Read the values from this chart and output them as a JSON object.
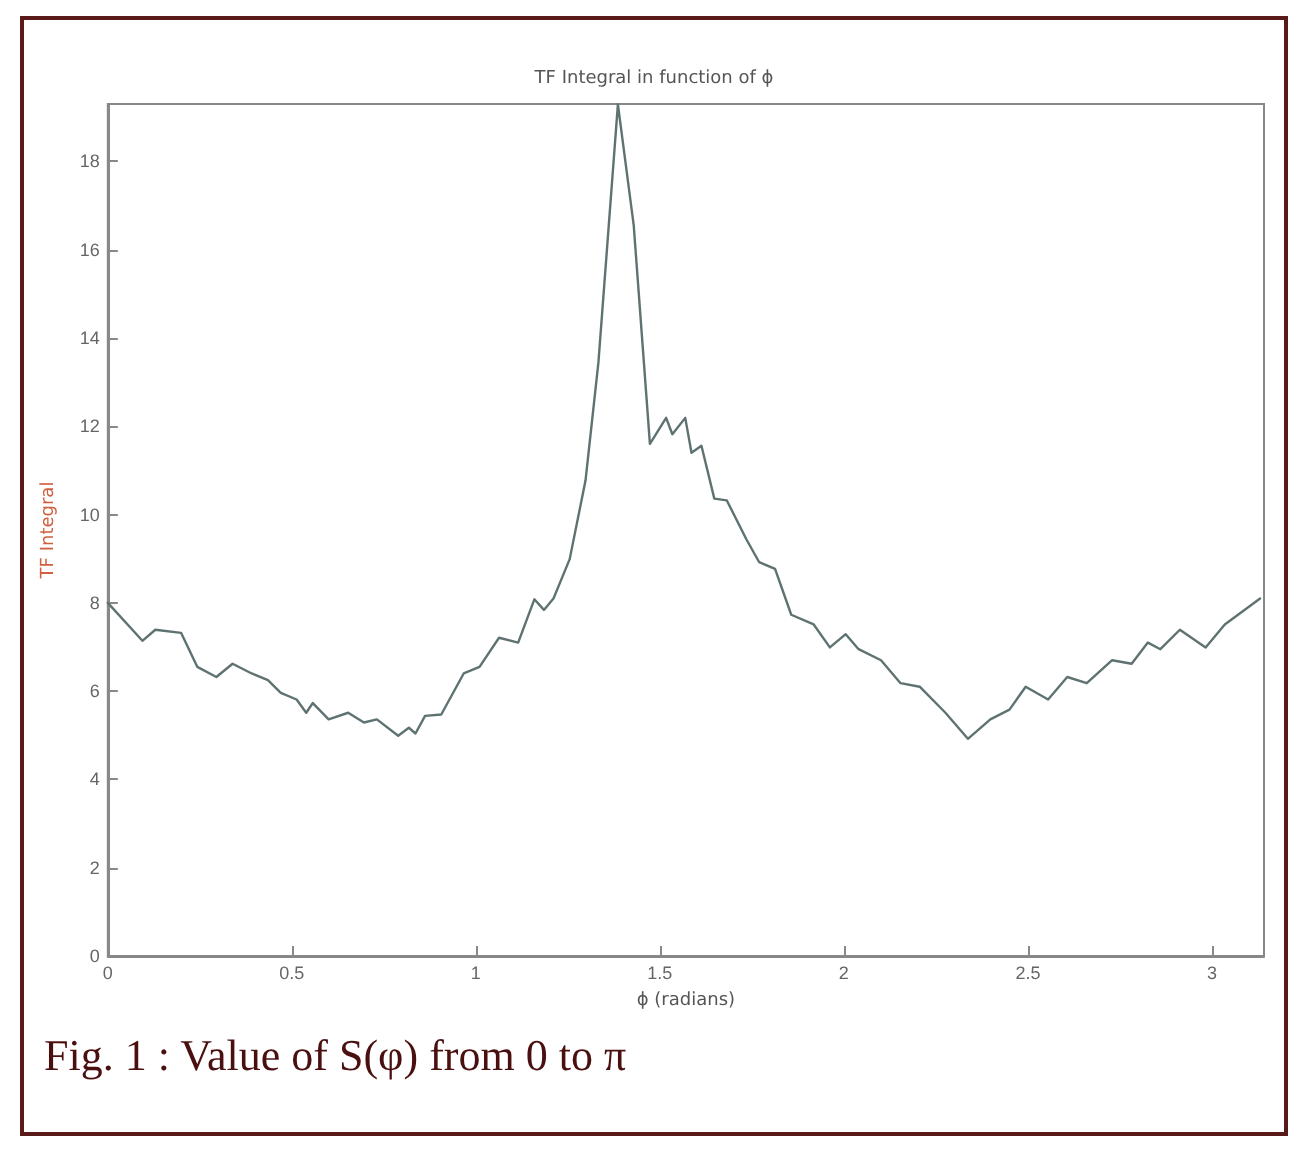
{
  "chart_data": {
    "type": "line",
    "title": "TF Integral in function of ϕ",
    "xlabel": "ϕ (radians)",
    "ylabel": "TF Integral",
    "annotations": [
      "Fig. 1 : Value of S(φ)  from 0 to π"
    ],
    "xlim": [
      0,
      3.1416
    ],
    "xticks": [
      0,
      0.5,
      1,
      1.5,
      2,
      2.5,
      3
    ],
    "ylim": [
      0,
      19.3
    ],
    "yticks": [
      0,
      2,
      4,
      6,
      8,
      10,
      12,
      14,
      16,
      18
    ],
    "grid": false,
    "marker": "none",
    "line_style": "solid",
    "series": [
      {
        "color": "#5f7272",
        "x": [
          0,
          0.094,
          0.129,
          0.199,
          0.243,
          0.295,
          0.339,
          0.391,
          0.435,
          0.47,
          0.513,
          0.539,
          0.557,
          0.6,
          0.653,
          0.696,
          0.731,
          0.789,
          0.818,
          0.836,
          0.862,
          0.906,
          0.967,
          1.01,
          1.063,
          1.115,
          1.159,
          1.185,
          1.211,
          1.255,
          1.298,
          1.333,
          1.386,
          1.429,
          1.473,
          1.517,
          1.534,
          1.569,
          1.586,
          1.613,
          1.648,
          1.682,
          1.735,
          1.77,
          1.813,
          1.857,
          1.918,
          1.962,
          2.005,
          2.04,
          2.101,
          2.154,
          2.206,
          2.276,
          2.337,
          2.398,
          2.45,
          2.494,
          2.555,
          2.607,
          2.66,
          2.729,
          2.782,
          2.826,
          2.86,
          2.913,
          2.983,
          3.035,
          3.131
        ],
        "values": [
          8.0,
          7.14,
          7.39,
          7.32,
          6.55,
          6.32,
          6.62,
          6.4,
          6.25,
          5.96,
          5.81,
          5.51,
          5.73,
          5.36,
          5.51,
          5.29,
          5.36,
          4.99,
          5.17,
          5.04,
          5.44,
          5.47,
          6.4,
          6.55,
          7.21,
          7.1,
          8.08,
          7.84,
          8.1,
          8.99,
          10.77,
          13.44,
          19.29,
          16.55,
          11.6,
          12.19,
          11.82,
          12.19,
          11.4,
          11.56,
          10.36,
          10.32,
          9.44,
          8.92,
          8.77,
          7.73,
          7.51,
          6.99,
          7.29,
          6.95,
          6.7,
          6.18,
          6.1,
          5.51,
          4.92,
          5.36,
          5.58,
          6.1,
          5.81,
          6.32,
          6.18,
          6.7,
          6.62,
          7.1,
          6.95,
          7.39,
          6.99,
          7.51,
          8.1
        ]
      }
    ]
  }
}
